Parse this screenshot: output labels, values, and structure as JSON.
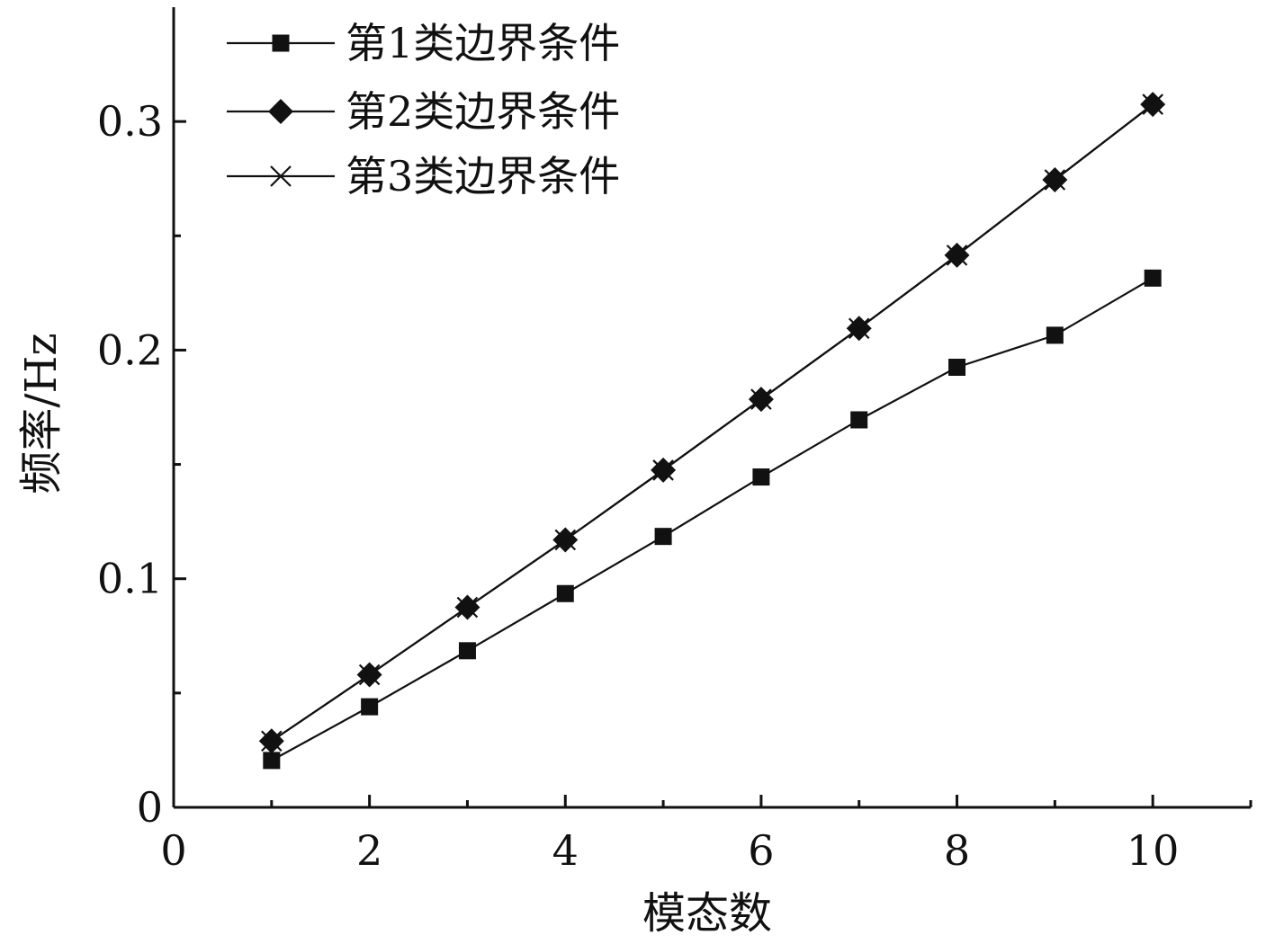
{
  "chart_data": {
    "type": "line",
    "xlabel": "模态数",
    "ylabel": "频率/Hz",
    "xlim": [
      0,
      11
    ],
    "ylim": [
      0,
      0.35
    ],
    "x_ticks_major": [
      0,
      2,
      4,
      6,
      8,
      10
    ],
    "x_ticks_minor": [
      1,
      3,
      5,
      7,
      9,
      11
    ],
    "x_tick_labels": [
      "0",
      "2",
      "4",
      "6",
      "8",
      "10"
    ],
    "y_ticks_major": [
      0,
      0.1,
      0.2,
      0.3
    ],
    "y_ticks_minor": [
      0.05,
      0.15,
      0.25
    ],
    "y_tick_labels": [
      "0",
      "0.1",
      "0.2",
      "0.3"
    ],
    "grid": false,
    "legend_position": "top-left",
    "x": [
      1,
      2,
      3,
      4,
      5,
      6,
      7,
      8,
      9,
      10
    ],
    "series": [
      {
        "name": "第1类边界条件",
        "marker": "square",
        "color": "#111111",
        "values": [
          0.0205,
          0.044,
          0.0685,
          0.0935,
          0.1185,
          0.1445,
          0.1695,
          0.1925,
          0.2065,
          0.2315
        ]
      },
      {
        "name": "第2类边界条件",
        "marker": "diamond",
        "color": "#111111",
        "values": [
          0.029,
          0.058,
          0.0875,
          0.117,
          0.1475,
          0.1785,
          0.2095,
          0.2415,
          0.2745,
          0.3075
        ]
      },
      {
        "name": "第3类边界条件",
        "marker": "cross",
        "color": "#111111",
        "values": [
          0.029,
          0.058,
          0.0875,
          0.117,
          0.1475,
          0.1785,
          0.2095,
          0.2415,
          0.2745,
          0.3075
        ]
      }
    ]
  }
}
